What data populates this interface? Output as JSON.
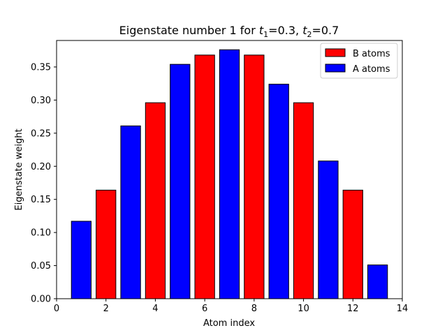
{
  "chart_data": {
    "type": "bar",
    "title": {
      "prefix": "Eigenstate number 1 for ",
      "t1_symbol": "t",
      "t1_sub": "1",
      "t1_value": "=0.3, ",
      "t2_symbol": "t",
      "t2_sub": "2",
      "t2_value": "=0.7"
    },
    "xlabel": "Atom index",
    "ylabel": "Eigenstate weight",
    "xlim": [
      0,
      14
    ],
    "ylim": [
      0,
      0.39
    ],
    "xticks": [
      0,
      2,
      4,
      6,
      8,
      10,
      12,
      14
    ],
    "xtick_labels": [
      "0",
      "2",
      "4",
      "6",
      "8",
      "10",
      "12",
      "14"
    ],
    "yticks": [
      0.0,
      0.05,
      0.1,
      0.15,
      0.2,
      0.25,
      0.3,
      0.35
    ],
    "ytick_labels": [
      "0.00",
      "0.05",
      "0.10",
      "0.15",
      "0.20",
      "0.25",
      "0.30",
      "0.35"
    ],
    "bar_width": 0.8,
    "series": [
      {
        "name": "B atoms",
        "color": "#ff0000",
        "x": [
          2,
          4,
          6,
          8,
          10,
          12
        ],
        "values": [
          0.164,
          0.296,
          0.368,
          0.368,
          0.296,
          0.164
        ]
      },
      {
        "name": "A atoms",
        "color": "#0000ff",
        "x": [
          1,
          3,
          5,
          7,
          9,
          11,
          13
        ],
        "values": [
          0.117,
          0.261,
          0.354,
          0.376,
          0.324,
          0.208,
          0.051
        ]
      }
    ],
    "legend": {
      "placement": "top-right"
    },
    "grid": false
  }
}
